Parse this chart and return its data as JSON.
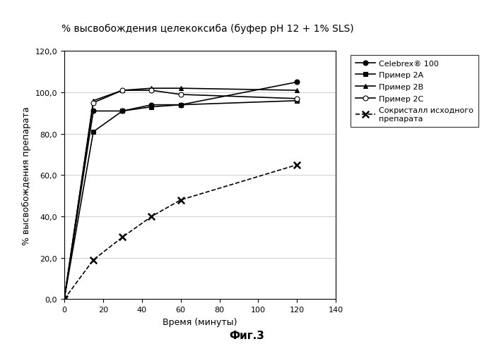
{
  "title": "% высвобождения целекоксиба (буфер pH 12 + 1% SLS)",
  "xlabel": "Время (минуты)",
  "ylabel": "% высвобождения препарата",
  "caption": "Фиг.3",
  "xlim": [
    0,
    140
  ],
  "ylim": [
    0,
    120
  ],
  "xticks": [
    0,
    20,
    40,
    60,
    80,
    100,
    120,
    140
  ],
  "yticks": [
    0.0,
    20.0,
    40.0,
    60.0,
    80.0,
    100.0,
    120.0
  ],
  "series": [
    {
      "label": "Celebrex® 100",
      "x": [
        0,
        15,
        30,
        45,
        60,
        120
      ],
      "y": [
        0,
        91,
        91,
        94,
        94,
        105
      ],
      "color": "#000000",
      "linestyle": "-",
      "marker": "o",
      "markersize": 5,
      "linewidth": 1.2,
      "markerfacecolor": "#000000",
      "markeredgecolor": "#000000"
    },
    {
      "label": "Пример 2A",
      "x": [
        0,
        15,
        30,
        45,
        60,
        120
      ],
      "y": [
        0,
        81,
        91,
        93,
        94,
        96
      ],
      "color": "#000000",
      "linestyle": "-",
      "marker": "s",
      "markersize": 5,
      "linewidth": 1.2,
      "markerfacecolor": "#000000",
      "markeredgecolor": "#000000"
    },
    {
      "label": "Пример 2B",
      "x": [
        0,
        15,
        30,
        45,
        60,
        120
      ],
      "y": [
        0,
        96,
        101,
        102,
        102,
        101
      ],
      "color": "#000000",
      "linestyle": "-",
      "marker": "^",
      "markersize": 5,
      "linewidth": 1.2,
      "markerfacecolor": "#000000",
      "markeredgecolor": "#000000"
    },
    {
      "label": "Пример 2C",
      "x": [
        0,
        15,
        30,
        45,
        60,
        120
      ],
      "y": [
        0,
        95,
        101,
        101,
        99,
        97
      ],
      "color": "#000000",
      "linestyle": "-",
      "marker": "o",
      "markersize": 5,
      "linewidth": 1.2,
      "markerfacecolor": "#ffffff",
      "markeredgecolor": "#000000"
    },
    {
      "label": "Сокристалл исходного\nпрепарата",
      "x": [
        0,
        15,
        30,
        45,
        60,
        120
      ],
      "y": [
        0,
        19,
        30,
        40,
        48,
        65
      ],
      "color": "#000000",
      "linestyle": "--",
      "marker": "$\\times$",
      "markersize": 7,
      "linewidth": 1.2,
      "markerfacecolor": "#000000",
      "markeredgecolor": "#000000"
    }
  ],
  "background_color": "#ffffff",
  "grid_color": "#bbbbbb",
  "title_fontsize": 10,
  "axis_label_fontsize": 9,
  "tick_fontsize": 8,
  "legend_fontsize": 8
}
